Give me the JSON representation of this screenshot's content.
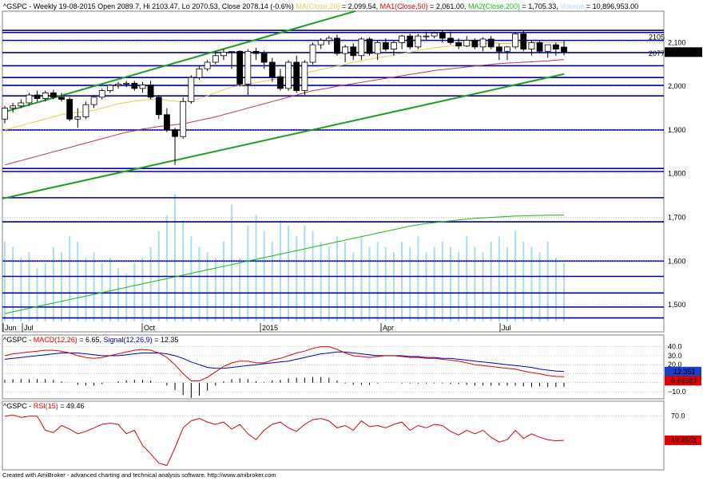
{
  "header": {
    "title": "^GSPC - Weekly 19-08-2015 Open 2089.7, Hi 2103.47, Lo 2070.53, Close 2078.14 (-0.6%)",
    "ma20_label": "MA(Close,20)",
    "ma20_value": " = 2,099.54,",
    "ma50_label": "MA1(Close,50)",
    "ma50_value": " = 2,061.00,",
    "ma200_label": "MA2(Close,200)",
    "ma200_value": " = 1,705.33,",
    "volume_label": "Volume",
    "volume_value": " = 10,896,953.00"
  },
  "macd_header": {
    "prefix": "^GSPC - ",
    "macd_label": "MACD(12,26)",
    "macd_value": " = 6.65, ",
    "signal_label": "Signal(12,26,9)",
    "signal_value": " = 12.35"
  },
  "rsi_header": {
    "prefix": "^GSPC - ",
    "rsi_label": "RSI(15)",
    "rsi_value": " = 49.46"
  },
  "footer": "Created with AmiBroker - advanced charting and technical analysis software. http://www.amibroker.com",
  "colors": {
    "candle_up": "#ffffff",
    "candle_down": "#000000",
    "ma20": "#e8c84a",
    "ma50": "#c0306a",
    "ma200": "#10c010",
    "volume": "#a8dcf0",
    "trend": "#1e9e1e",
    "hline": "#0000a0",
    "macd": "#e00000",
    "signal": "#0000c0",
    "rsi": "#e00000"
  },
  "chart_data": [
    {
      "type": "candlestick",
      "title": "^GSPC - Weekly",
      "x_labels": [
        "Jun",
        "Jul",
        "Oct",
        "2015",
        "Apr",
        "Jul"
      ],
      "y_ticks": [
        1500,
        1600,
        1700,
        1800,
        1900,
        2000,
        2100
      ],
      "ylim": [
        1440,
        2170
      ],
      "price_markers": [
        {
          "label": "2105",
          "value": 2105
        },
        {
          "label": "2077",
          "value": 2077
        },
        {
          "label": "2,078.14",
          "value": 2078.14
        }
      ],
      "candles": [
        {
          "o": 1925,
          "h": 1955,
          "l": 1915,
          "c": 1950
        },
        {
          "o": 1950,
          "h": 1962,
          "l": 1940,
          "c": 1955
        },
        {
          "o": 1955,
          "h": 1970,
          "l": 1950,
          "c": 1962
        },
        {
          "o": 1962,
          "h": 1985,
          "l": 1955,
          "c": 1980
        },
        {
          "o": 1980,
          "h": 1990,
          "l": 1965,
          "c": 1972
        },
        {
          "o": 1972,
          "h": 1990,
          "l": 1965,
          "c": 1985
        },
        {
          "o": 1985,
          "h": 1992,
          "l": 1970,
          "c": 1975
        },
        {
          "o": 1975,
          "h": 1985,
          "l": 1965,
          "c": 1970
        },
        {
          "o": 1970,
          "h": 1975,
          "l": 1920,
          "c": 1925
        },
        {
          "o": 1925,
          "h": 1950,
          "l": 1905,
          "c": 1930
        },
        {
          "o": 1930,
          "h": 1965,
          "l": 1925,
          "c": 1958
        },
        {
          "o": 1958,
          "h": 1980,
          "l": 1950,
          "c": 1975
        },
        {
          "o": 1975,
          "h": 1995,
          "l": 1970,
          "c": 1990
        },
        {
          "o": 1990,
          "h": 2005,
          "l": 1985,
          "c": 2002
        },
        {
          "o": 2002,
          "h": 2010,
          "l": 1995,
          "c": 2005
        },
        {
          "o": 2005,
          "h": 2012,
          "l": 1998,
          "c": 2007
        },
        {
          "o": 2007,
          "h": 2012,
          "l": 1990,
          "c": 1995
        },
        {
          "o": 1995,
          "h": 2010,
          "l": 1985,
          "c": 2003
        },
        {
          "o": 2003,
          "h": 2012,
          "l": 1970,
          "c": 1975
        },
        {
          "o": 1975,
          "h": 1980,
          "l": 1925,
          "c": 1935
        },
        {
          "o": 1935,
          "h": 1950,
          "l": 1895,
          "c": 1900
        },
        {
          "o": 1900,
          "h": 1905,
          "l": 1820,
          "c": 1885
        },
        {
          "o": 1885,
          "h": 1975,
          "l": 1880,
          "c": 1965
        },
        {
          "o": 1965,
          "h": 2025,
          "l": 1960,
          "c": 2020
        },
        {
          "o": 2020,
          "h": 2045,
          "l": 2015,
          "c": 2040
        },
        {
          "o": 2040,
          "h": 2060,
          "l": 2035,
          "c": 2055
        },
        {
          "o": 2055,
          "h": 2080,
          "l": 2050,
          "c": 2070
        },
        {
          "o": 2070,
          "h": 2085,
          "l": 2060,
          "c": 2078
        },
        {
          "o": 2078,
          "h": 2080,
          "l": 2040,
          "c": 2080
        },
        {
          "o": 2080,
          "h": 2082,
          "l": 2000,
          "c": 2005
        },
        {
          "o": 2005,
          "h": 2085,
          "l": 1980,
          "c": 2080
        },
        {
          "o": 2080,
          "h": 2088,
          "l": 2060,
          "c": 2075
        },
        {
          "o": 2075,
          "h": 2082,
          "l": 2040,
          "c": 2055
        },
        {
          "o": 2055,
          "h": 2065,
          "l": 2010,
          "c": 2022
        },
        {
          "o": 2022,
          "h": 2040,
          "l": 1990,
          "c": 1995
        },
        {
          "o": 1995,
          "h": 2060,
          "l": 1990,
          "c": 2055
        },
        {
          "o": 2055,
          "h": 2070,
          "l": 1985,
          "c": 1990
        },
        {
          "o": 1990,
          "h": 2060,
          "l": 1980,
          "c": 2055
        },
        {
          "o": 2055,
          "h": 2100,
          "l": 2050,
          "c": 2095
        },
        {
          "o": 2095,
          "h": 2110,
          "l": 2085,
          "c": 2105
        },
        {
          "o": 2105,
          "h": 2115,
          "l": 2095,
          "c": 2110
        },
        {
          "o": 2110,
          "h": 2118,
          "l": 2070,
          "c": 2075
        },
        {
          "o": 2075,
          "h": 2095,
          "l": 2055,
          "c": 2090
        },
        {
          "o": 2090,
          "h": 2098,
          "l": 2060,
          "c": 2070
        },
        {
          "o": 2070,
          "h": 2112,
          "l": 2060,
          "c": 2108
        },
        {
          "o": 2108,
          "h": 2112,
          "l": 2070,
          "c": 2075
        },
        {
          "o": 2075,
          "h": 2105,
          "l": 2060,
          "c": 2100
        },
        {
          "o": 2100,
          "h": 2110,
          "l": 2080,
          "c": 2085
        },
        {
          "o": 2085,
          "h": 2105,
          "l": 2070,
          "c": 2100
        },
        {
          "o": 2100,
          "h": 2118,
          "l": 2085,
          "c": 2115
        },
        {
          "o": 2115,
          "h": 2120,
          "l": 2085,
          "c": 2090
        },
        {
          "o": 2090,
          "h": 2120,
          "l": 2085,
          "c": 2115
        },
        {
          "o": 2115,
          "h": 2125,
          "l": 2105,
          "c": 2115
        },
        {
          "o": 2115,
          "h": 2125,
          "l": 2110,
          "c": 2122
        },
        {
          "o": 2122,
          "h": 2128,
          "l": 2100,
          "c": 2110
        },
        {
          "o": 2110,
          "h": 2125,
          "l": 2095,
          "c": 2100
        },
        {
          "o": 2100,
          "h": 2110,
          "l": 2085,
          "c": 2092
        },
        {
          "o": 2092,
          "h": 2115,
          "l": 2090,
          "c": 2105
        },
        {
          "o": 2105,
          "h": 2110,
          "l": 2085,
          "c": 2090
        },
        {
          "o": 2090,
          "h": 2112,
          "l": 2080,
          "c": 2108
        },
        {
          "o": 2108,
          "h": 2115,
          "l": 2085,
          "c": 2090
        },
        {
          "o": 2090,
          "h": 2098,
          "l": 2060,
          "c": 2080
        },
        {
          "o": 2080,
          "h": 2092,
          "l": 2060,
          "c": 2090
        },
        {
          "o": 2090,
          "h": 2122,
          "l": 2085,
          "c": 2120
        },
        {
          "o": 2120,
          "h": 2128,
          "l": 2080,
          "c": 2085
        },
        {
          "o": 2085,
          "h": 2105,
          "l": 2070,
          "c": 2100
        },
        {
          "o": 2100,
          "h": 2105,
          "l": 2075,
          "c": 2080
        },
        {
          "o": 2080,
          "h": 2095,
          "l": 2065,
          "c": 2095
        },
        {
          "o": 2095,
          "h": 2100,
          "l": 2070,
          "c": 2085
        },
        {
          "o": 2089.7,
          "h": 2103.47,
          "l": 2070.53,
          "c": 2078.14
        }
      ],
      "ma20": [
        1900,
        1905,
        1910,
        1915,
        1920,
        1925,
        1930,
        1935,
        1938,
        1940,
        1942,
        1945,
        1950,
        1955,
        1960,
        1963,
        1966,
        1968,
        1970,
        1970,
        1968,
        1966,
        1965,
        1968,
        1972,
        1978,
        1985,
        1992,
        1998,
        2002,
        2005,
        2008,
        2012,
        2015,
        2018,
        2022,
        2026,
        2030,
        2034,
        2038,
        2042,
        2046,
        2050,
        2055,
        2058,
        2062,
        2065,
        2068,
        2072,
        2075,
        2078,
        2082,
        2085,
        2088,
        2090,
        2092,
        2094,
        2095,
        2096,
        2097,
        2098,
        2098,
        2098,
        2099,
        2099,
        2100,
        2100,
        2100,
        2100,
        2099.54
      ],
      "ma50": [
        1820,
        1825,
        1830,
        1835,
        1840,
        1845,
        1850,
        1855,
        1860,
        1865,
        1870,
        1875,
        1880,
        1885,
        1890,
        1895,
        1898,
        1902,
        1905,
        1908,
        1910,
        1912,
        1914,
        1918,
        1922,
        1926,
        1930,
        1935,
        1940,
        1945,
        1950,
        1955,
        1960,
        1965,
        1970,
        1975,
        1980,
        1985,
        1990,
        1993,
        1996,
        2000,
        2003,
        2006,
        2009,
        2012,
        2015,
        2018,
        2021,
        2024,
        2027,
        2030,
        2033,
        2036,
        2038,
        2040,
        2042,
        2044,
        2046,
        2048,
        2050,
        2052,
        2053,
        2054,
        2055,
        2056,
        2057,
        2058,
        2060,
        2061.0
      ],
      "ma200": [
        1480,
        1484,
        1488,
        1492,
        1496,
        1500,
        1504,
        1508,
        1512,
        1516,
        1520,
        1524,
        1528,
        1532,
        1536,
        1540,
        1544,
        1548,
        1552,
        1556,
        1560,
        1564,
        1568,
        1572,
        1576,
        1580,
        1584,
        1588,
        1592,
        1596,
        1600,
        1604,
        1608,
        1612,
        1616,
        1620,
        1624,
        1628,
        1632,
        1636,
        1640,
        1644,
        1648,
        1652,
        1656,
        1660,
        1664,
        1668,
        1672,
        1676,
        1680,
        1683,
        1686,
        1688,
        1690,
        1692,
        1694,
        1696,
        1698,
        1699,
        1700,
        1701,
        1702,
        1703,
        1703.5,
        1704,
        1704.5,
        1705,
        1705.2,
        1705.33
      ],
      "volume": [
        15,
        14,
        12,
        13,
        10,
        11,
        14,
        13,
        16,
        15,
        12,
        13,
        11,
        12,
        10,
        9,
        11,
        12,
        14,
        17,
        20,
        24,
        19,
        16,
        14,
        13,
        12,
        15,
        22,
        12,
        18,
        20,
        17,
        15,
        19,
        18,
        16,
        18,
        17,
        15,
        14,
        16,
        15,
        13,
        16,
        14,
        15,
        14,
        13,
        15,
        14,
        16,
        13,
        14,
        15,
        14,
        13,
        16,
        14,
        13,
        15,
        16,
        14,
        17,
        15,
        14,
        13,
        15,
        12,
        11
      ],
      "volume_max": 30
    },
    {
      "type": "line",
      "title": "MACD(12,26)",
      "y_ticks": [
        40,
        30,
        20,
        10,
        0,
        -10
      ],
      "ylim": [
        -17,
        52
      ],
      "value_badges": [
        {
          "label": "12.351",
          "value": 12.35
        },
        {
          "label": "6.64987",
          "value": 6.65
        }
      ],
      "series": [
        {
          "name": "MACD(12,26)",
          "values": [
            30,
            32,
            33,
            34,
            35,
            36,
            36,
            35,
            33,
            30,
            28,
            27,
            28,
            30,
            32,
            34,
            36,
            37,
            36,
            33,
            28,
            20,
            10,
            2,
            2,
            6,
            12,
            18,
            22,
            24,
            24,
            22,
            22,
            25,
            27,
            30,
            33,
            35,
            38,
            40,
            40,
            37,
            33,
            30,
            29,
            28,
            29,
            30,
            30,
            29,
            28,
            28,
            27,
            27,
            26,
            25,
            24,
            22,
            20,
            19,
            18,
            17,
            16,
            15,
            13,
            11,
            10,
            8,
            7,
            6.65
          ]
        },
        {
          "name": "Signal(12,26,9)",
          "values": [
            26,
            27,
            28,
            29,
            30,
            31,
            32,
            33,
            33,
            33,
            32,
            31,
            30,
            30,
            30,
            31,
            32,
            33,
            33,
            33,
            32,
            30,
            27,
            23,
            20,
            17,
            16,
            16,
            17,
            18,
            19,
            20,
            21,
            22,
            23,
            24,
            26,
            28,
            30,
            32,
            33,
            34,
            34,
            33,
            32,
            31,
            30,
            30,
            30,
            30,
            29,
            29,
            28,
            28,
            27,
            27,
            26,
            25,
            24,
            23,
            22,
            21,
            20,
            19,
            18,
            17,
            15,
            14,
            13,
            12.35
          ]
        }
      ]
    },
    {
      "type": "line",
      "title": "RSI(15)",
      "y_ticks": [
        70
      ],
      "ylim": [
        25,
        82
      ],
      "value_badges": [
        {
          "label": "49.4561",
          "value": 49.46
        }
      ],
      "series": [
        {
          "name": "RSI(15)",
          "values": [
            70,
            71,
            69,
            70,
            70,
            58,
            56,
            62,
            59,
            55,
            57,
            60,
            63,
            64,
            63,
            55,
            58,
            45,
            38,
            30,
            28,
            43,
            60,
            66,
            68,
            65,
            63,
            65,
            59,
            63,
            55,
            50,
            58,
            63,
            65,
            60,
            57,
            63,
            67,
            68,
            66,
            60,
            62,
            58,
            66,
            61,
            62,
            60,
            63,
            65,
            58,
            62,
            60,
            63,
            62,
            57,
            54,
            58,
            55,
            58,
            52,
            48,
            50,
            58,
            51,
            55,
            52,
            50,
            49,
            49.46
          ]
        }
      ]
    }
  ]
}
